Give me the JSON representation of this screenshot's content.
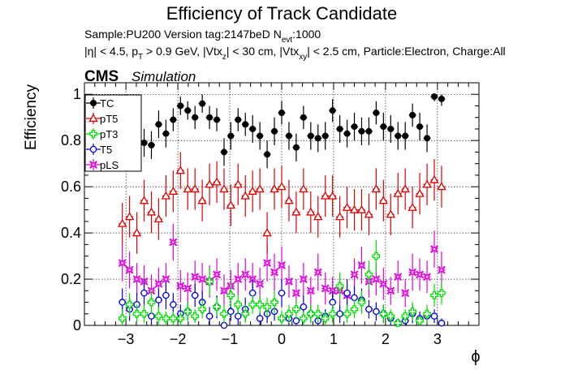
{
  "chart_data": {
    "type": "scatter",
    "title": "Efficiency of Track Candidate",
    "subtitle1": "Sample:PU200   Version tag:2147beD  N",
    "subtitle1_sub": "evt",
    "subtitle1_tail": ":1000",
    "subtitle2": {
      "p1": "|η| < 4.5, p",
      "s1": "T",
      "p2": " > 0.9 GeV, |Vtx",
      "s2": "z",
      "p3": "| < 30 cm, |Vtx",
      "s3": "xy",
      "p4": "| < 2.5 cm, Particle:Electron, Charge:All"
    },
    "cms_label": "CMS",
    "simulation_label": "Simulation",
    "xlabel": "ϕ",
    "ylabel": "Efficiency",
    "xlim": [
      -3.8,
      3.8
    ],
    "ylim": [
      0,
      1.05
    ],
    "x_ticks": [
      -3,
      -2,
      -1,
      0,
      1,
      2,
      3
    ],
    "x_tick_labels": [
      "−3",
      "−2",
      "−1",
      "0",
      "1",
      "2",
      "3"
    ],
    "y_ticks": [
      0,
      0.2,
      0.4,
      0.6,
      0.8,
      1
    ],
    "y_tick_labels": [
      "0",
      "0.2",
      "0.4",
      "0.6",
      "0.8",
      "1"
    ],
    "grid": true,
    "legend_position": "top-left",
    "x_bin_half_width": 0.07,
    "x": [
      -3.07,
      -2.93,
      -2.79,
      -2.65,
      -2.51,
      -2.37,
      -2.23,
      -2.09,
      -1.95,
      -1.81,
      -1.67,
      -1.53,
      -1.39,
      -1.25,
      -1.11,
      -0.98,
      -0.84,
      -0.7,
      -0.56,
      -0.42,
      -0.28,
      -0.14,
      0.0,
      0.14,
      0.28,
      0.42,
      0.56,
      0.7,
      0.84,
      0.98,
      1.12,
      1.26,
      1.4,
      1.54,
      1.68,
      1.82,
      1.96,
      2.1,
      2.24,
      2.38,
      2.52,
      2.66,
      2.8,
      2.94,
      3.08
    ],
    "series": [
      {
        "name": "TC",
        "color": "#000000",
        "marker": "filled-circle",
        "values": [
          0.84,
          0.88,
          0.86,
          0.79,
          0.78,
          0.87,
          0.83,
          0.89,
          0.95,
          0.93,
          0.9,
          0.96,
          0.9,
          0.89,
          0.75,
          0.82,
          0.89,
          0.87,
          0.85,
          0.82,
          0.74,
          0.84,
          0.92,
          0.82,
          0.77,
          0.9,
          0.82,
          0.81,
          0.82,
          0.93,
          0.85,
          0.83,
          0.86,
          0.84,
          0.84,
          0.92,
          0.86,
          0.85,
          0.82,
          0.82,
          0.91,
          0.86,
          0.81,
          0.99,
          0.98
        ],
        "err": [
          0.07,
          0.06,
          0.06,
          0.06,
          0.06,
          0.06,
          0.06,
          0.05,
          0.04,
          0.04,
          0.05,
          0.04,
          0.05,
          0.05,
          0.06,
          0.06,
          0.05,
          0.05,
          0.06,
          0.06,
          0.06,
          0.06,
          0.05,
          0.06,
          0.06,
          0.05,
          0.06,
          0.06,
          0.06,
          0.05,
          0.06,
          0.06,
          0.06,
          0.06,
          0.06,
          0.05,
          0.06,
          0.06,
          0.06,
          0.06,
          0.05,
          0.06,
          0.06,
          0.02,
          0.03
        ]
      },
      {
        "name": "pT5",
        "color": "#e00000",
        "marker": "open-triangle",
        "values": [
          0.44,
          0.47,
          0.4,
          0.54,
          0.49,
          0.46,
          0.56,
          0.58,
          0.67,
          0.59,
          0.59,
          0.54,
          0.61,
          0.62,
          0.59,
          0.52,
          0.61,
          0.56,
          0.58,
          0.59,
          0.4,
          0.59,
          0.6,
          0.54,
          0.49,
          0.59,
          0.49,
          0.47,
          0.56,
          0.56,
          0.47,
          0.51,
          0.5,
          0.5,
          0.48,
          0.59,
          0.54,
          0.48,
          0.57,
          0.59,
          0.51,
          0.57,
          0.61,
          0.63,
          0.6
        ],
        "err": [
          0.09,
          0.09,
          0.09,
          0.09,
          0.09,
          0.09,
          0.09,
          0.09,
          0.08,
          0.09,
          0.09,
          0.09,
          0.09,
          0.09,
          0.09,
          0.09,
          0.09,
          0.09,
          0.09,
          0.09,
          0.09,
          0.09,
          0.09,
          0.09,
          0.09,
          0.09,
          0.09,
          0.09,
          0.09,
          0.09,
          0.09,
          0.09,
          0.09,
          0.09,
          0.09,
          0.09,
          0.09,
          0.09,
          0.09,
          0.09,
          0.09,
          0.09,
          0.09,
          0.09,
          0.09
        ]
      },
      {
        "name": "pT3",
        "color": "#00e000",
        "marker": "open-cross",
        "values": [
          0.03,
          0.09,
          0.05,
          0.05,
          0.1,
          0.04,
          0.03,
          0.03,
          0.03,
          0.06,
          0.04,
          0.07,
          0.19,
          0.08,
          0.05,
          0.13,
          0.09,
          0.05,
          0.09,
          0.09,
          0.08,
          0.1,
          0.03,
          0.05,
          0.07,
          0.03,
          0.05,
          0.05,
          0.03,
          0.05,
          0.17,
          0.05,
          0.07,
          0.1,
          0.22,
          0.3,
          0.05,
          0.04,
          0.01,
          0.04,
          0.06,
          0.02,
          0.05,
          0.13,
          0.14
        ],
        "err": [
          0.04,
          0.05,
          0.04,
          0.04,
          0.05,
          0.04,
          0.03,
          0.03,
          0.03,
          0.04,
          0.03,
          0.04,
          0.06,
          0.04,
          0.04,
          0.05,
          0.04,
          0.04,
          0.04,
          0.04,
          0.04,
          0.05,
          0.03,
          0.04,
          0.04,
          0.03,
          0.04,
          0.04,
          0.03,
          0.04,
          0.06,
          0.04,
          0.04,
          0.05,
          0.06,
          0.07,
          0.04,
          0.03,
          0.02,
          0.03,
          0.04,
          0.02,
          0.04,
          0.05,
          0.05
        ]
      },
      {
        "name": "T5",
        "color": "#0000e0",
        "marker": "open-circle",
        "values": [
          0.1,
          0.07,
          0.09,
          0.14,
          0.04,
          0.11,
          0.13,
          0.09,
          0.05,
          0.06,
          0.13,
          0.1,
          0.04,
          0.08,
          0.0,
          0.06,
          0.04,
          0.07,
          0.14,
          0.03,
          0.05,
          0.06,
          0.14,
          0.03,
          0.02,
          0.08,
          0.05,
          0.02,
          0.04,
          0.1,
          0.05,
          0.14,
          0.12,
          0.11,
          0.07,
          0.06,
          0.05,
          0.03,
          0.01,
          0.02,
          0.05,
          0.03,
          0.04,
          0.04,
          0.01
        ],
        "err": [
          0.06,
          0.05,
          0.05,
          0.06,
          0.04,
          0.05,
          0.06,
          0.05,
          0.04,
          0.04,
          0.05,
          0.05,
          0.04,
          0.05,
          0.01,
          0.04,
          0.04,
          0.05,
          0.06,
          0.03,
          0.04,
          0.04,
          0.06,
          0.03,
          0.02,
          0.05,
          0.04,
          0.02,
          0.03,
          0.05,
          0.04,
          0.06,
          0.05,
          0.05,
          0.04,
          0.04,
          0.04,
          0.03,
          0.02,
          0.02,
          0.04,
          0.03,
          0.03,
          0.03,
          0.02
        ]
      },
      {
        "name": "pLS",
        "color": "#e000e0",
        "marker": "open-star",
        "values": [
          0.27,
          0.24,
          0.2,
          0.19,
          0.15,
          0.18,
          0.2,
          0.36,
          0.17,
          0.16,
          0.21,
          0.2,
          0.19,
          0.22,
          0.15,
          0.17,
          0.2,
          0.22,
          0.2,
          0.18,
          0.27,
          0.23,
          0.26,
          0.19,
          0.14,
          0.2,
          0.15,
          0.23,
          0.16,
          0.15,
          0.15,
          0.13,
          0.22,
          0.26,
          0.19,
          0.2,
          0.18,
          0.15,
          0.21,
          0.14,
          0.23,
          0.22,
          0.21,
          0.33,
          0.24
        ],
        "err": [
          0.08,
          0.08,
          0.07,
          0.07,
          0.07,
          0.07,
          0.07,
          0.08,
          0.07,
          0.07,
          0.07,
          0.07,
          0.07,
          0.07,
          0.07,
          0.07,
          0.07,
          0.07,
          0.07,
          0.07,
          0.08,
          0.08,
          0.08,
          0.07,
          0.06,
          0.07,
          0.06,
          0.08,
          0.07,
          0.06,
          0.06,
          0.06,
          0.07,
          0.08,
          0.07,
          0.07,
          0.07,
          0.06,
          0.07,
          0.06,
          0.08,
          0.07,
          0.07,
          0.08,
          0.08
        ]
      }
    ]
  }
}
